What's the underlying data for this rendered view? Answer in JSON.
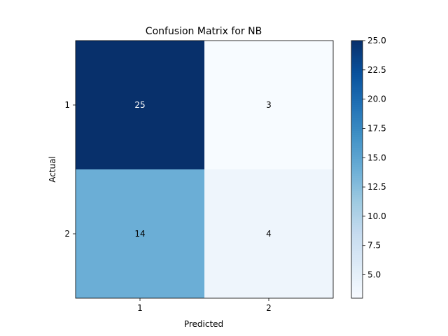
{
  "chart_data": {
    "type": "heatmap",
    "title": "Confusion Matrix for NB",
    "xlabel": "Predicted",
    "ylabel": "Actual",
    "x_categories": [
      "1",
      "2"
    ],
    "y_categories": [
      "1",
      "2"
    ],
    "values": [
      [
        25,
        3
      ],
      [
        14,
        4
      ]
    ],
    "colormap": "Blues",
    "colorbar": {
      "min": 3,
      "max": 25,
      "ticks": [
        "5.0",
        "7.5",
        "10.0",
        "12.5",
        "15.0",
        "17.5",
        "20.0",
        "22.5",
        "25.0"
      ],
      "tick_values": [
        5,
        7.5,
        10,
        12.5,
        15,
        17.5,
        20,
        22.5,
        25
      ]
    },
    "grid": false
  }
}
